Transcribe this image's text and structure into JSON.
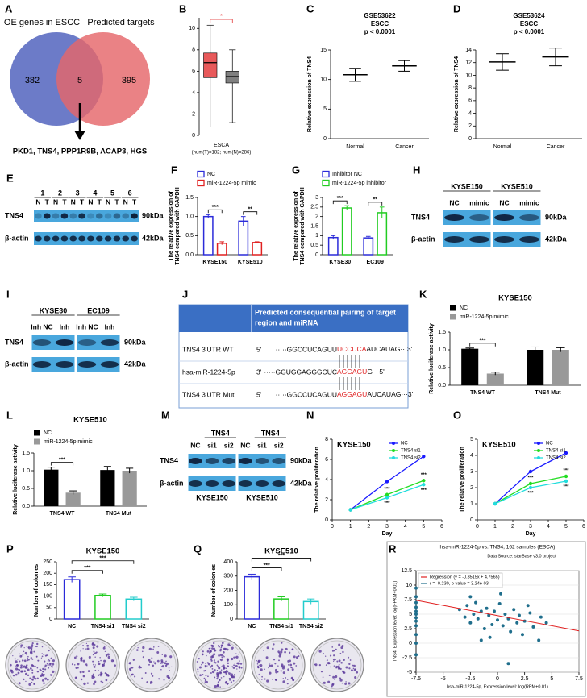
{
  "chart_data": [
    {
      "panel": "B",
      "type": "box",
      "xlabel": "ESCA",
      "xlabel_note": "(num(T)=182; num(N)=286)",
      "annotation": "*",
      "ylim": [
        0,
        11
      ],
      "yticks": [
        0,
        2,
        4,
        6,
        8,
        10
      ],
      "boxes": [
        {
          "color": "#e8595a",
          "whisker_low": 0.8,
          "q1": 5.4,
          "median": 6.8,
          "q3": 7.7,
          "whisker_high": 10.3
        },
        {
          "color": "#808080",
          "whisker_low": 1.2,
          "q1": 4.9,
          "median": 5.5,
          "q3": 6.0,
          "whisker_high": 8.0
        }
      ]
    },
    {
      "panel": "C",
      "type": "dot",
      "title": [
        "GSE53622",
        "ESCC",
        "p < 0.0001"
      ],
      "ylabel": "Relative expression of TNS4",
      "categories": [
        "Normal",
        "Cancer"
      ],
      "values": [
        10.8,
        12.3
      ],
      "errors": [
        1.1,
        0.9
      ],
      "color": "#000000",
      "ylim": [
        0,
        15
      ],
      "yticks": [
        0,
        5,
        10,
        15
      ]
    },
    {
      "panel": "D",
      "type": "dot",
      "title": [
        "GSE53624",
        "ESCC",
        "p < 0.0001"
      ],
      "ylabel": "Relative expression of TNS4",
      "categories": [
        "Normal",
        "Cancer"
      ],
      "values": [
        12.1,
        12.9
      ],
      "errors": [
        1.3,
        1.4
      ],
      "color": "#000000",
      "ylim": [
        0,
        14
      ],
      "yticks": [
        0,
        2,
        4,
        6,
        8,
        10,
        12,
        14
      ]
    },
    {
      "panel": "F",
      "type": "bar",
      "style": "outline",
      "ylabel": [
        "The relative expression of",
        "TNS4 compared with GAPDH"
      ],
      "categories": [
        "KYSE150",
        "KYSE510"
      ],
      "series": [
        {
          "name": "NC",
          "color": "#2b2bd9",
          "values": [
            1.0,
            0.88
          ],
          "errors": [
            0.05,
            0.12
          ]
        },
        {
          "name": "miR-1224-5p mimic",
          "color": "#e02020",
          "values": [
            0.3,
            0.32
          ],
          "errors": [
            0.04,
            0.02
          ]
        }
      ],
      "significance": [
        "***",
        "**"
      ],
      "ylim": [
        0,
        1.5
      ],
      "yticks": [
        {
          "value": 0,
          "label": "0.0"
        },
        {
          "value": 0.5,
          "label": "0.5"
        },
        {
          "value": 1,
          "label": "1.0"
        },
        {
          "value": 1.5,
          "label": "1.5"
        }
      ]
    },
    {
      "panel": "G",
      "type": "bar",
      "style": "outline",
      "ylabel": [
        "The relative expression of",
        "TNS4 compared with GAPDH"
      ],
      "categories": [
        "KYSE30",
        "EC109"
      ],
      "series": [
        {
          "name": "Inhibitor NC",
          "color": "#2b2bd9",
          "values": [
            0.9,
            0.88
          ],
          "errors": [
            0.1,
            0.08
          ]
        },
        {
          "name": "miR-1224-5p inhibitor",
          "color": "#22cc22",
          "values": [
            2.45,
            2.2
          ],
          "errors": [
            0.12,
            0.3
          ]
        }
      ],
      "significance": [
        "***",
        "**"
      ],
      "ylim": [
        0,
        3
      ],
      "yticks": [
        0,
        0.5,
        1,
        1.5,
        2,
        2.5,
        3
      ]
    },
    {
      "panel": "K",
      "type": "bar",
      "style": "filled",
      "title": "KYSE150",
      "ylabel": "Relative luciferase activity",
      "categories": [
        "TNS4 WT",
        "TNS4 Mut"
      ],
      "series": [
        {
          "name": "NC",
          "color": "#000000",
          "values": [
            1.03,
            1.0
          ],
          "errors": [
            0.02,
            0.08
          ]
        },
        {
          "name": "miR-1224-5p mimic",
          "color": "#999999",
          "values": [
            0.33,
            1.0
          ],
          "errors": [
            0.04,
            0.06
          ]
        }
      ],
      "significance": [
        "***"
      ],
      "ylim": [
        0,
        1.5
      ],
      "yticks": [
        {
          "value": 0,
          "label": "0.0"
        },
        {
          "value": 0.5,
          "label": "0.5"
        },
        {
          "value": 1,
          "label": "1.0"
        },
        {
          "value": 1.5,
          "label": "1.5"
        }
      ]
    },
    {
      "panel": "L",
      "type": "bar",
      "style": "filled",
      "title": "KYSE510",
      "ylabel": "Relative luciferase activity",
      "categories": [
        "TNS4 WT",
        "TNS4 Mut"
      ],
      "series": [
        {
          "name": "NC",
          "color": "#000000",
          "values": [
            1.03,
            1.02
          ],
          "errors": [
            0.07,
            0.1
          ]
        },
        {
          "name": "miR-1224-5p mimic",
          "color": "#999999",
          "values": [
            0.38,
            1.0
          ],
          "errors": [
            0.05,
            0.07
          ]
        }
      ],
      "significance": [
        "***"
      ],
      "ylim": [
        0,
        1.5
      ],
      "yticks": [
        {
          "value": 0,
          "label": "0.0"
        },
        {
          "value": 0.5,
          "label": "0.5"
        },
        {
          "value": 1,
          "label": "1.0"
        },
        {
          "value": 1.5,
          "label": "1.5"
        }
      ]
    },
    {
      "panel": "N",
      "type": "line",
      "title": "KYSE150",
      "xlabel": "Day",
      "ylabel": "The relative proliferation",
      "x": [
        1,
        3,
        5
      ],
      "xlim": [
        0,
        6
      ],
      "xticks": [
        0,
        1,
        2,
        3,
        4,
        5,
        6
      ],
      "ylim": [
        0,
        8
      ],
      "yticks": [
        0,
        2,
        4,
        6,
        8
      ],
      "series": [
        {
          "name": "NC",
          "color": "#1a1aff",
          "values": [
            1,
            3.8,
            6.3
          ]
        },
        {
          "name": "TNS4 si1",
          "color": "#22dd22",
          "values": [
            1,
            2.5,
            3.9
          ]
        },
        {
          "name": "TNS4 si2",
          "color": "#22dddd",
          "values": [
            1,
            2.2,
            3.5
          ]
        }
      ],
      "significance": "***"
    },
    {
      "panel": "O",
      "type": "line",
      "title": "KYSE510",
      "xlabel": "Day",
      "ylabel": "The relative proliferation",
      "x": [
        1,
        3,
        5
      ],
      "xlim": [
        0,
        6
      ],
      "xticks": [
        0,
        1,
        2,
        3,
        4,
        5,
        6
      ],
      "ylim": [
        0,
        5
      ],
      "yticks": [
        0,
        1,
        2,
        3,
        4,
        5
      ],
      "series": [
        {
          "name": "NC",
          "color": "#1a1aff",
          "values": [
            1,
            3,
            4.15
          ]
        },
        {
          "name": "TNS4 si1",
          "color": "#22dd22",
          "values": [
            1,
            2.25,
            2.7
          ]
        },
        {
          "name": "TNS4 si2",
          "color": "#22dddd",
          "values": [
            1,
            2.0,
            2.4
          ]
        }
      ],
      "significance": "***"
    },
    {
      "panel": "P",
      "type": "bar",
      "style": "outline",
      "title": "KYSE150",
      "ylabel": "Number of colonies",
      "categories": [
        "NC",
        "TNS4 si1",
        "TNS4 si2"
      ],
      "values": [
        172,
        103,
        87
      ],
      "errors": [
        12,
        6,
        8
      ],
      "colors": [
        "#2b2bd9",
        "#22cc22",
        "#22cccc"
      ],
      "significance": [
        "***",
        "***"
      ],
      "ylim": [
        0,
        250
      ],
      "yticks": [
        0,
        50,
        100,
        150,
        200,
        250
      ]
    },
    {
      "panel": "Q",
      "type": "bar",
      "style": "outline",
      "title": "KYSE510",
      "ylabel": "Number of colonies",
      "categories": [
        "NC",
        "TNS4 si1",
        "TNS4 si2"
      ],
      "values": [
        295,
        140,
        122
      ],
      "errors": [
        18,
        15,
        18
      ],
      "colors": [
        "#2b2bd9",
        "#22cc22",
        "#22cccc"
      ],
      "significance": [
        "***",
        "***"
      ],
      "ylim": [
        0,
        400
      ],
      "yticks": [
        0,
        100,
        200,
        300,
        400
      ]
    },
    {
      "panel": "R",
      "type": "scatter",
      "title": "hsa-miR-1224-5p vs. TNS4, 162 samples (ESCA)",
      "subtitle": "Data Source: starBase v3.0 project",
      "legend": [
        "Regression (y = -0.3515x + 4.7565)",
        "r = -0.230, p-value = 3.24e-03"
      ],
      "xlabel": "hsa-miR-1224-5p, Expression level: log(RPM+0.01)",
      "ylabel": "TNS4, Expression level: log(FPKM+0.01)",
      "color": "#1f6e8c",
      "line_color": "#e02020",
      "grid": true,
      "regression": {
        "slope": -0.3515,
        "intercept": 4.7565
      },
      "xlim": [
        -7.5,
        7.5
      ],
      "xticks": [
        -7.5,
        -5,
        -2.5,
        0,
        2.5,
        5,
        7.5
      ],
      "ylim": [
        -5,
        12.5
      ],
      "yticks": [
        -5,
        -2.5,
        0,
        2.5,
        5,
        7.5,
        10,
        12.5
      ],
      "x": [
        -7.5,
        -7.5,
        -7.5,
        -7.5,
        -7.5,
        -7.5,
        -7.5,
        -7.5,
        -7.5,
        -7.5,
        -7.5,
        -7.5,
        -3.5,
        -3,
        -2.8,
        -2.5,
        -2.2,
        -2,
        -1.8,
        -1.5,
        -1.2,
        -1,
        -0.8,
        -0.5,
        -0.3,
        0,
        0.2,
        0.5,
        0.7,
        1,
        1.2,
        1.5,
        1.8,
        2,
        2.3,
        2.5,
        3,
        3.3,
        3.8,
        4.5,
        1,
        -1.5,
        0.3,
        -2.5,
        2.8,
        4,
        -0.7
      ],
      "y": [
        9.5,
        8,
        7,
        6.2,
        5.5,
        5,
        4.4,
        3.8,
        3,
        1.5,
        0,
        -2,
        5.8,
        4.5,
        6.5,
        3.5,
        5,
        7,
        4.2,
        5.5,
        2.5,
        6,
        4.8,
        3.2,
        5.5,
        4,
        6.8,
        3,
        5,
        4.2,
        2,
        5.8,
        3.5,
        4.8,
        1.5,
        3.8,
        5.2,
        2.8,
        0.5,
        3.5,
        -3.5,
        0.5,
        8.5,
        8,
        6.5,
        4.5,
        1
      ]
    }
  ],
  "venn": {
    "panel": "A",
    "left_title": "OE genes in ESCC",
    "right_title": "Predicted targets",
    "left_only": 382,
    "overlap": 5,
    "right_only": 395,
    "genes": "PKD1, TNS4, PPP1R9B, ACAP3, HGS"
  },
  "blots": [
    {
      "panel": "E",
      "groups": [
        "1",
        "2",
        "3",
        "4",
        "5",
        "6"
      ],
      "lanes": [
        "N",
        "T",
        "N",
        "T",
        "N",
        "T",
        "N",
        "T",
        "N",
        "T",
        "N",
        "T"
      ],
      "rows": [
        "TNS4",
        "β-actin"
      ],
      "sizes": [
        "90kDa",
        "42kDa"
      ]
    },
    {
      "panel": "H",
      "groups": [
        "KYSE150",
        "KYSE510"
      ],
      "lanes": [
        "NC",
        "mimic",
        "NC",
        "mimic"
      ],
      "rows": [
        "TNS4",
        "β-actin"
      ],
      "sizes": [
        "90kDa",
        "42kDa"
      ]
    },
    {
      "panel": "I",
      "groups": [
        "KYSE30",
        "EC109"
      ],
      "lanes": [
        "Inh NC",
        "Inh",
        "Inh NC",
        "Inh"
      ],
      "rows": [
        "TNS4",
        "β-actin"
      ],
      "sizes": [
        "90kDa",
        "42kDa"
      ]
    },
    {
      "panel": "M",
      "groups": [
        "TNS4",
        "TNS4"
      ],
      "lanes": [
        "NC",
        "si1",
        "si2",
        "NC",
        "si1",
        "si2"
      ],
      "rows": [
        "TNS4",
        "β-actin"
      ],
      "sizes": [
        "90kDa",
        "42kDa"
      ],
      "cell_lines": [
        "KYSE150",
        "KYSE510"
      ]
    }
  ],
  "sequence_table": {
    "panel": "J",
    "header": [
      "Predicted consequential pairing of target",
      "region and miRNA"
    ],
    "rows": [
      {
        "name": "TNS4 3'UTR WT",
        "end": "5'",
        "left": "·····GGCCUCAGUU",
        "site": "UCCUCA",
        "right": "AUCAUAG···3'"
      },
      {
        "name": "hsa-miR-1224-5p",
        "end": "3'",
        "left": "·····GGUGGAGGGCUC",
        "site": "AGGAGU",
        "right": "G···5'"
      },
      {
        "name": "TNS4 3'UTR Mut",
        "end": "5'",
        "left": "·····GGCCUCAGUU",
        "site": "AGGAGU",
        "right": "AUCAUAG···3'"
      }
    ]
  }
}
